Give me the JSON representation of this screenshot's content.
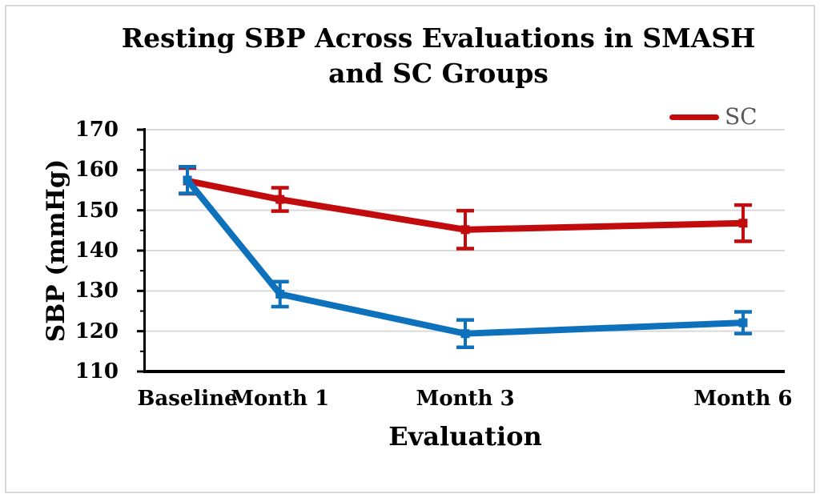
{
  "window": {
    "background": "#ffffff",
    "border_color": "#d9d9d9"
  },
  "chart_data": {
    "type": "line",
    "title": "Resting SBP Across Evaluations in SMASH and SC Groups",
    "title_lines": [
      "Resting SBP Across Evaluations in SMASH",
      "and SC Groups"
    ],
    "xlabel": "Evaluation",
    "ylabel": "SBP (mmHg)",
    "categories": [
      "Baseline",
      "Month 1",
      "Month 3",
      "Month 6"
    ],
    "x_values": [
      0,
      1,
      3,
      6
    ],
    "xlim": [
      -0.45,
      6.45
    ],
    "ylim": [
      110,
      170
    ],
    "y_ticks": [
      110,
      120,
      130,
      140,
      150,
      160,
      170
    ],
    "y_minor_step": 5,
    "grid": "horizontal-major",
    "gridline_color": "#d9d9d9",
    "axis_color": "#000000",
    "legend_position": "top-right",
    "legend_entries": [
      "SC"
    ],
    "legend_text_color": "#595959",
    "series": [
      {
        "name": "SC",
        "color": "#c20b0c",
        "values": [
          157.3,
          152.7,
          145.2,
          146.8
        ],
        "error_bars": [
          3.2,
          2.9,
          4.7,
          4.5
        ],
        "in_legend": true
      },
      {
        "name": "SMASH",
        "color": "#0d72bb",
        "values": [
          157.5,
          129.2,
          119.4,
          122.1
        ],
        "error_bars": [
          3.3,
          3.1,
          3.4,
          2.7
        ],
        "in_legend": false
      }
    ]
  }
}
